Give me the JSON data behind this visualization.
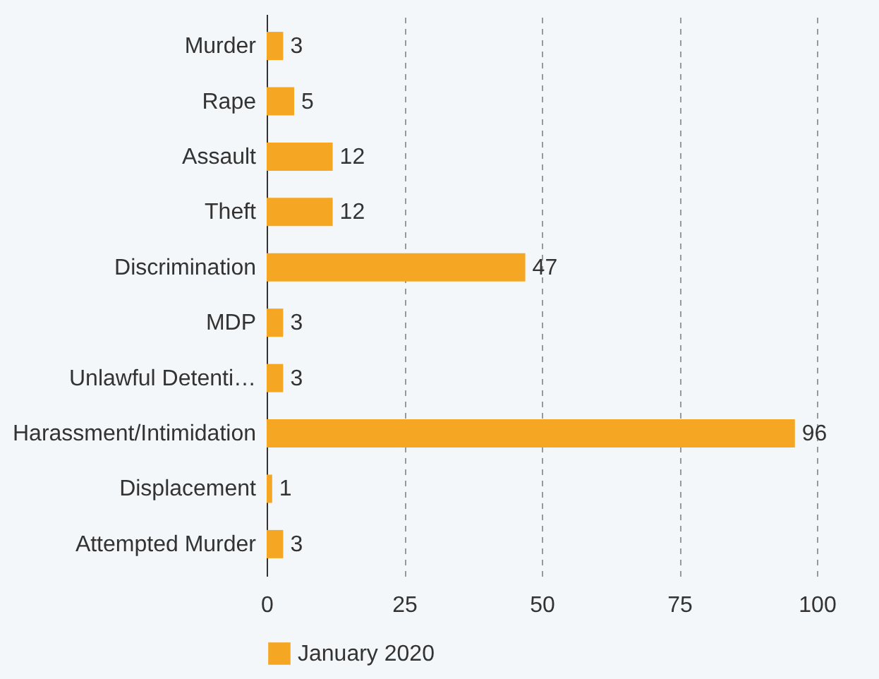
{
  "chart_data": {
    "type": "bar",
    "orientation": "horizontal",
    "categories": [
      "Murder",
      "Rape",
      "Assault",
      "Theft",
      "Discrimination",
      "MDP",
      "Unlawful Detenti…",
      "Harassment/Intimidation",
      "Displacement",
      "Attempted Murder"
    ],
    "series": [
      {
        "name": "January 2020",
        "color": "#f5a623",
        "values": [
          3,
          5,
          12,
          12,
          47,
          3,
          3,
          96,
          1,
          3
        ]
      }
    ],
    "xlim": [
      0,
      100
    ],
    "xticks": [
      0,
      25,
      50,
      75,
      100
    ],
    "grid": "x",
    "legend": "bottom",
    "data_labels": true
  }
}
